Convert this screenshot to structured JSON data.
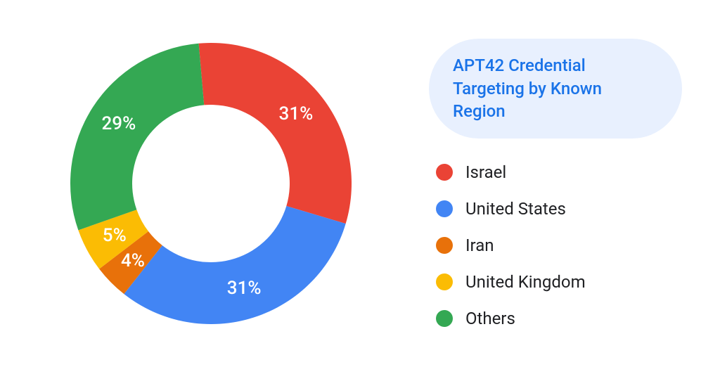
{
  "chart": {
    "type": "donut",
    "title": "APT42 Credential Targeting by Known Region",
    "title_color": "#1a73e8",
    "title_bg": "#e8f0fe",
    "title_fontsize": 24,
    "background_color": "#ffffff",
    "outer_radius": 200,
    "inner_radius": 112,
    "start_angle_deg": -5,
    "slice_label_fontsize": 26,
    "slice_label_color": "#ffffff",
    "legend_label_color": "#202124",
    "legend_label_fontsize": 24,
    "legend_swatch_size": 24,
    "slices": [
      {
        "label": "Israel",
        "value": 31,
        "display": "31%",
        "color": "#ea4335"
      },
      {
        "label": "United States",
        "value": 31,
        "display": "31%",
        "color": "#4285f4"
      },
      {
        "label": "Iran",
        "value": 4,
        "display": "4%",
        "color": "#e8710a"
      },
      {
        "label": "United Kingdom",
        "value": 5,
        "display": "5%",
        "color": "#fbbc04"
      },
      {
        "label": "Others",
        "value": 29,
        "display": "29%",
        "color": "#34a853"
      }
    ]
  }
}
